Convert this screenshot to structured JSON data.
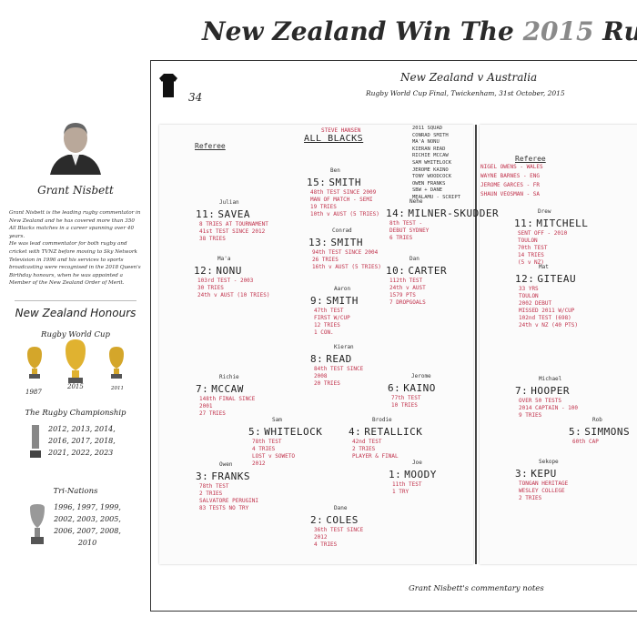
{
  "title": {
    "before": "New Zealand Win The ",
    "year": "2015",
    "after": " Rugby World Cup"
  },
  "sidebar": {
    "name": "Grant Nisbett",
    "bio": [
      "Grant Nisbett is the leading rugby commentator in New Zealand and he has covered more than 350 All Blacks matches in a career spanning over 40 years.",
      "He was lead commentator for both rugby and cricket with TVNZ before moving to Sky Network Television in 1996 and his services to sports broadcasting were recognised in the 2018 Queen's Birthday honours, when he was appointed a Member of the New Zealand Order of Merit."
    ],
    "honours_title": "New Zealand Honours",
    "honours": [
      {
        "title": "Rugby World Cup",
        "years": [
          "1987",
          "2015",
          "2011"
        ]
      },
      {
        "title": "The Rugby Championship",
        "years": "2012, 2013, 2014, 2016, 2017, 2018, 2021, 2022, 2023"
      },
      {
        "title": "Tri-Nations",
        "years": "1996, 1997, 1999, 2002, 2003, 2005, 2006, 2007, 2008, 2010"
      }
    ]
  },
  "match": {
    "number": "34",
    "title": "New Zealand v Australia",
    "subtitle": "Rugby World Cup Final, Twickenham, 31st October, 2015"
  },
  "left_sheet": {
    "referee": "Referee",
    "coach": "STEVE HANSEN",
    "team": "ALL BLACKS",
    "squad_notes": [
      "2011 SQUAD",
      "CONRAD SMITH",
      "MA'A NONU",
      "KIERAN READ",
      "RICHIE MCCAW",
      "SAM WHITELOCK",
      "JEROME KAINO",
      "TONY WOODCOCK",
      "OWEN FRANKS",
      "SBW + DANE",
      "MEALAMU - SCRIPT"
    ],
    "players": [
      {
        "number": "15:",
        "first": "Ben",
        "name": "SMITH",
        "notes": [
          "48th TEST SINCE 2009",
          "MAN OF MATCH - SEMI",
          "19 TRIES",
          "10th v AUST (5 TRIES)"
        ]
      },
      {
        "number": "14:",
        "first": "Nehe",
        "name": "MILNER-SKUDDER",
        "notes": [
          "8th TEST -",
          "DEBUT SYDNEY",
          "6 TRIES"
        ]
      },
      {
        "number": "13:",
        "first": "Conrad",
        "name": "SMITH",
        "notes": [
          "94th TEST SINCE 2004",
          "26 TRIES",
          "16th v AUST (5 TRIES)"
        ]
      },
      {
        "number": "12:",
        "first": "Ma'a",
        "name": "NONU",
        "notes": [
          "103rd TEST - 2003",
          "30 TRIES",
          "24th v AUST (10 TRIES)"
        ]
      },
      {
        "number": "11:",
        "first": "Julian",
        "name": "SAVEA",
        "notes": [
          "8 TRIES AT TOURNAMENT",
          "41st TEST SINCE 2012",
          "38 TRIES"
        ]
      },
      {
        "number": "10:",
        "first": "Dan",
        "name": "CARTER",
        "notes": [
          "112th TEST",
          "24th v AUST",
          "1579 PTS",
          "7 DROPGOALS"
        ]
      },
      {
        "number": "9:",
        "first": "Aaron",
        "name": "SMITH",
        "notes": [
          "47th TEST",
          "FIRST W/CUP",
          "12 TRIES",
          "1 CON."
        ]
      },
      {
        "number": "8:",
        "first": "Kieran",
        "name": "READ",
        "notes": [
          "84th TEST SINCE",
          "2008",
          "20 TRIES"
        ]
      },
      {
        "number": "7:",
        "first": "Richie",
        "name": "MCCAW",
        "notes": [
          "148th FINAL SINCE",
          "2001",
          "27 TRIES"
        ]
      },
      {
        "number": "6:",
        "first": "Jerome",
        "name": "KAINO",
        "notes": [
          "77th TEST",
          "10 TRIES"
        ]
      },
      {
        "number": "5:",
        "first": "Sam",
        "name": "WHITELOCK",
        "notes": [
          "78th TEST",
          "4 TRIES",
          "LOST v SOWETO",
          "2012"
        ]
      },
      {
        "number": "4:",
        "first": "Brodie",
        "name": "RETALLICK",
        "notes": [
          "42nd TEST",
          "2 TRIES",
          "PLAYER & FINAL"
        ]
      },
      {
        "number": "3:",
        "first": "Owen",
        "name": "FRANKS",
        "notes": [
          "78th TEST",
          "2 TRIES",
          "SALVATORE PERUGINI",
          "83 TESTS NO TRY"
        ]
      },
      {
        "number": "2:",
        "first": "Dane",
        "name": "COLES",
        "notes": [
          "36th TEST SINCE",
          "2012",
          "4 TRIES"
        ]
      },
      {
        "number": "1:",
        "first": "Joe",
        "name": "MOODY",
        "notes": [
          "11th TEST",
          "1 TRY"
        ]
      }
    ]
  },
  "right_sheet": {
    "referee": "Referee",
    "officials": [
      "NIGEL OWENS - WALES",
      "WAYNE BARNES - ENG",
      "JEROME GARCES - FR",
      "SHAUN VEOSMAN - SA"
    ],
    "players": [
      {
        "number": "11:",
        "first": "Drew",
        "name": "MITCHELL",
        "notes": [
          "SENT OFF - 2010",
          "TOULON",
          "70th TEST",
          "14 TRIES",
          "(5 v NZ)"
        ]
      },
      {
        "number": "12:",
        "first": "Mat",
        "name": "GITEAU",
        "notes": [
          "33 YRS",
          "TOULON",
          "2002 DEBUT",
          "MISSED 2011 W/CUP",
          "102nd TEST (698)",
          "24th v NZ (40 PTS)"
        ]
      },
      {
        "number": "7:",
        "first": "Michael",
        "name": "HOOPER",
        "notes": [
          "OVER 50 TESTS",
          "2014 CAPTAIN - 100",
          "9 TRIES"
        ]
      },
      {
        "number": "5:",
        "first": "Rob",
        "name": "SIMMONS",
        "notes": [
          "60th CAP"
        ]
      },
      {
        "number": "3:",
        "first": "Sekope",
        "name": "KEPU",
        "notes": [
          "TONGAN HERITAGE",
          "WESLEY COLLEGE",
          "2 TRIES"
        ]
      }
    ]
  },
  "caption": "Grant Nisbett's commentary notes"
}
